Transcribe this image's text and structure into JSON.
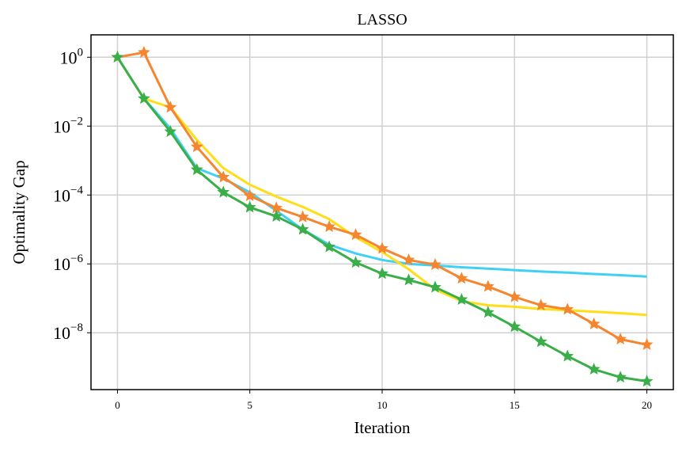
{
  "chart_data": {
    "type": "line",
    "title": "LASSO",
    "xlabel": "Iteration",
    "ylabel": "Optimality Gap",
    "xlim": [
      -1,
      21
    ],
    "ylim_log10": [
      -9.65,
      0.65
    ],
    "yscale": "log",
    "grid": true,
    "x_ticks": [
      0,
      5,
      10,
      15,
      20
    ],
    "x_tick_labels": [
      "0",
      "5",
      "10",
      "15",
      "20"
    ],
    "y_ticks_exponent": [
      0,
      -2,
      -4,
      -6,
      -8
    ],
    "y_tick_labels": [
      "10",
      "10",
      "10",
      "10",
      "10"
    ],
    "y_tick_exponent_labels": [
      "0",
      "−2",
      "−4",
      "−6",
      "−8"
    ],
    "x": [
      0,
      1,
      2,
      3,
      4,
      5,
      6,
      7,
      8,
      9,
      10,
      11,
      12,
      13,
      14,
      15,
      16,
      17,
      18,
      19,
      20
    ],
    "series": [
      {
        "color": "#3FD0F5",
        "marker": "none",
        "values": [
          1,
          0.063,
          0.0085,
          0.0006,
          0.0003,
          0.00012,
          3.5e-05,
          1e-05,
          3.6e-06,
          2e-06,
          1.3e-06,
          1e-06,
          9e-07,
          8e-07,
          7.3e-07,
          6.6e-07,
          6e-07,
          5.6e-07,
          5.1e-07,
          4.7e-07,
          4.3e-07
        ]
      },
      {
        "color": "#FFDD17",
        "marker": "none",
        "values": [
          1,
          0.063,
          0.035,
          0.004,
          0.0006,
          0.0002,
          9e-05,
          4.5e-05,
          2e-05,
          6e-06,
          2.2e-06,
          7e-07,
          1.8e-07,
          8.3e-08,
          6.3e-08,
          5.7e-08,
          4.9e-08,
          4.5e-08,
          4.1e-08,
          3.7e-08,
          3.3e-08
        ]
      },
      {
        "color": "#F5862F",
        "marker": "star",
        "values": [
          1,
          1.38,
          0.035,
          0.0025,
          0.00033,
          9.5e-05,
          4.2e-05,
          2.3e-05,
          1.2e-05,
          7e-06,
          2.8e-06,
          1.3e-06,
          9.5e-07,
          3.8e-07,
          2.2e-07,
          1.1e-07,
          6.3e-08,
          4.8e-08,
          1.8e-08,
          6.5e-09,
          4.5e-09
        ]
      },
      {
        "color": "#3AAE48",
        "marker": "star",
        "values": [
          1,
          0.063,
          0.0069,
          0.00054,
          0.00012,
          4.4e-05,
          2.4e-05,
          1e-05,
          3.1e-06,
          1.1e-06,
          5.2e-07,
          3.4e-07,
          2.1e-07,
          9.2e-08,
          3.9e-08,
          1.5e-08,
          5.5e-09,
          2.1e-09,
          8.7e-10,
          5.1e-10,
          3.9e-10
        ]
      }
    ]
  }
}
